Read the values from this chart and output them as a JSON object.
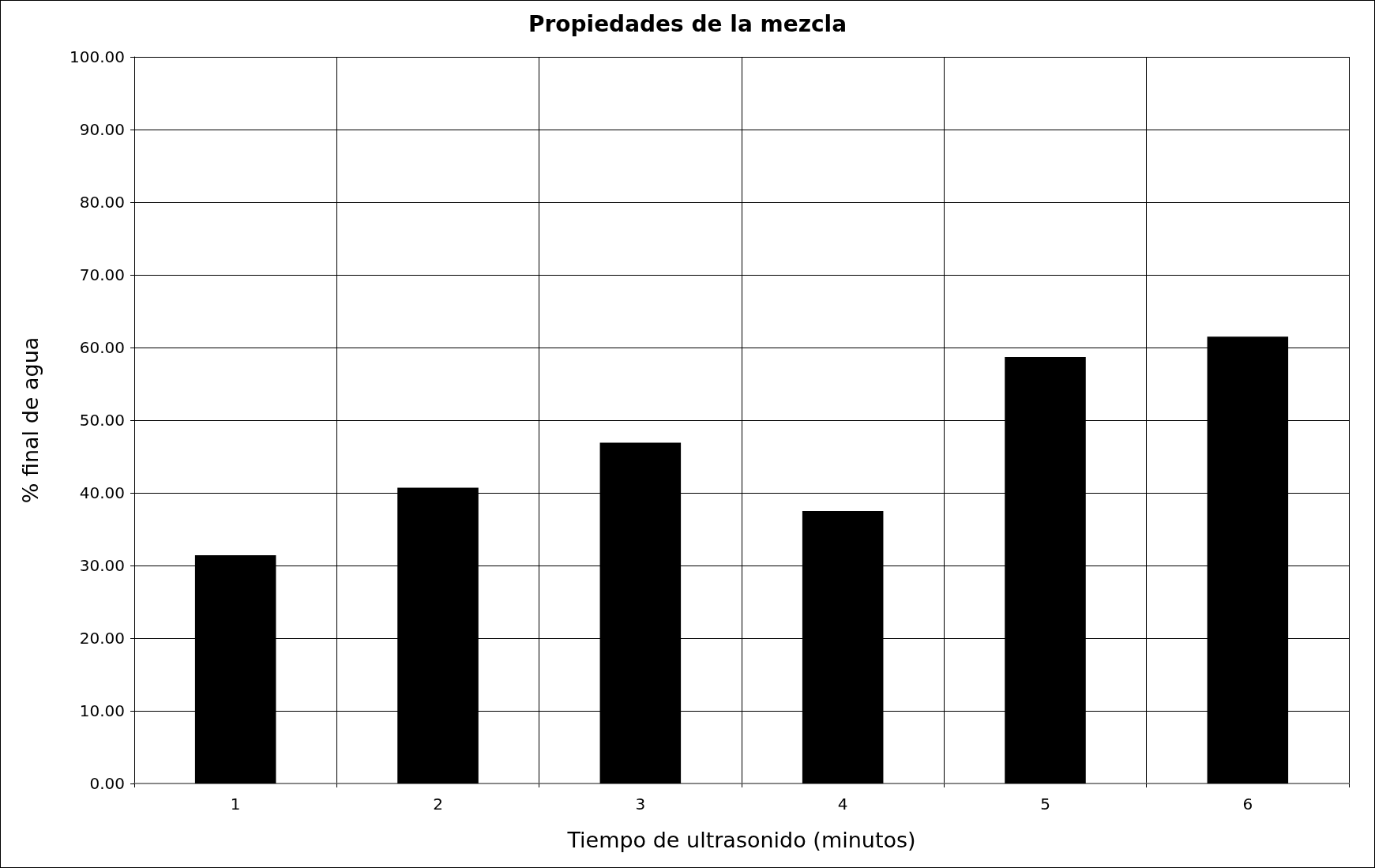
{
  "chart_data": {
    "type": "bar",
    "title": "Propiedades de la mezcla",
    "xlabel": "Tiempo de ultrasonido (minutos)",
    "ylabel": "% final de agua",
    "categories": [
      "1",
      "2",
      "3",
      "4",
      "5",
      "6"
    ],
    "values": [
      31.4,
      40.7,
      46.9,
      37.5,
      58.7,
      61.5
    ],
    "color": "#000000",
    "ylim": [
      0,
      100
    ],
    "yticks": [
      {
        "value": 0,
        "label": "0.00"
      },
      {
        "value": 10,
        "label": "10.00"
      },
      {
        "value": 20,
        "label": "20.00"
      },
      {
        "value": 30,
        "label": "30.00"
      },
      {
        "value": 40,
        "label": "40.00"
      },
      {
        "value": 50,
        "label": "50.00"
      },
      {
        "value": 60,
        "label": "60.00"
      },
      {
        "value": 70,
        "label": "70.00"
      },
      {
        "value": 80,
        "label": "80.00"
      },
      {
        "value": 90,
        "label": "90.00"
      },
      {
        "value": 100,
        "label": "100.00"
      }
    ],
    "grid": true
  }
}
